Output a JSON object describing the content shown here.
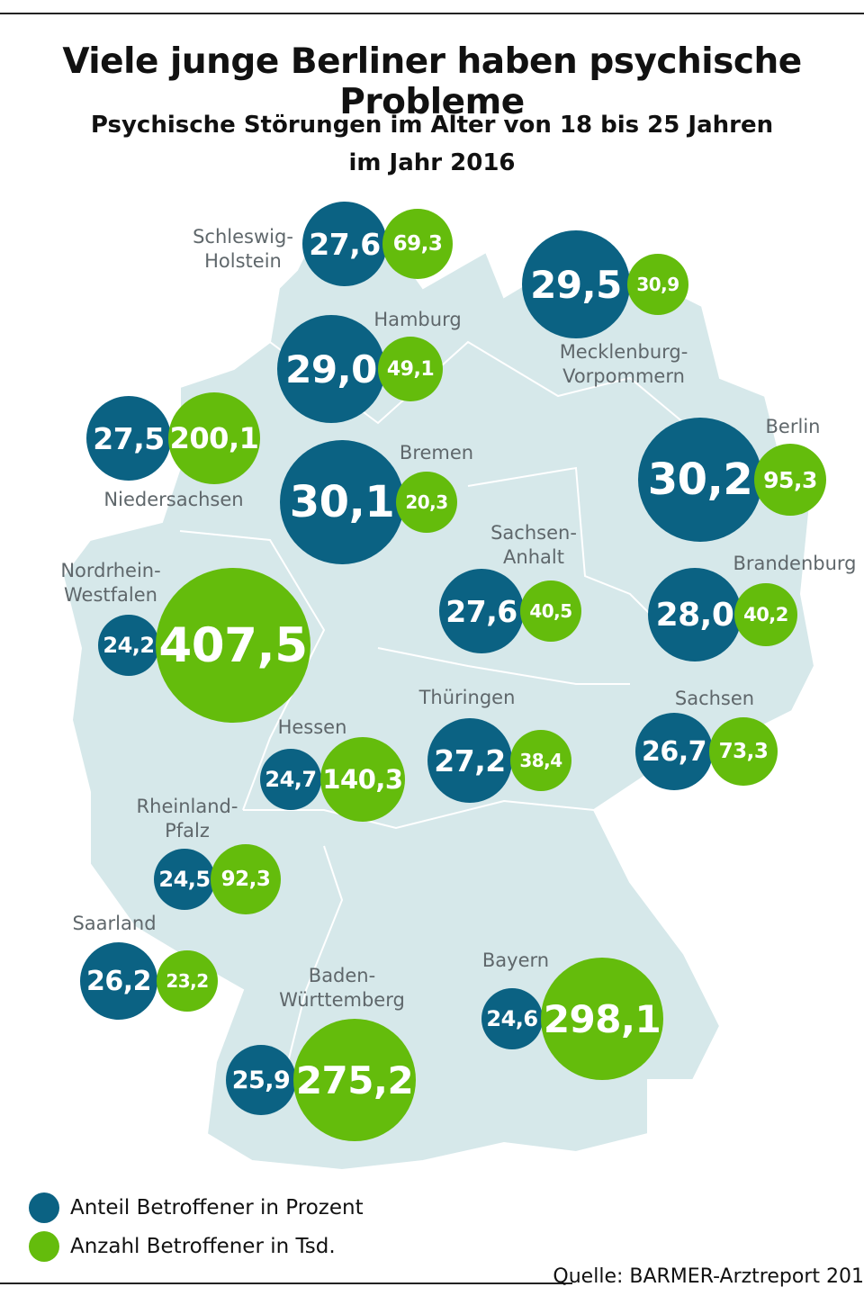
{
  "title": "Viele junge Berliner haben psychische Probleme",
  "subtitle_line1": "Psychische Störungen im Alter von 18 bis 25 Jahren",
  "subtitle_line2": "im Jahr 2016",
  "colors": {
    "anteil": "#0b6283",
    "anzahl": "#64bc0c",
    "map": "#d6e8ea"
  },
  "regions": [
    {
      "label": [
        "Schleswig-",
        "Holstein"
      ],
      "anteil": "27,6",
      "anzahl": "69,3"
    },
    {
      "label": [
        "Mecklenburg-",
        "Vorpommern"
      ],
      "anteil": "29,5",
      "anzahl": "30,9"
    },
    {
      "label": [
        "Hamburg"
      ],
      "anteil": "29,0",
      "anzahl": "49,1"
    },
    {
      "label": [
        "Niedersachsen"
      ],
      "anteil": "27,5",
      "anzahl": "200,1"
    },
    {
      "label": [
        "Bremen"
      ],
      "anteil": "30,1",
      "anzahl": "20,3"
    },
    {
      "label": [
        "Berlin"
      ],
      "anteil": "30,2",
      "anzahl": "95,3"
    },
    {
      "label": [
        "Sachsen-",
        "Anhalt"
      ],
      "anteil": "27,6",
      "anzahl": "40,5"
    },
    {
      "label": [
        "Brandenburg"
      ],
      "anteil": "28,0",
      "anzahl": "40,2"
    },
    {
      "label": [
        "Nordrhein-",
        "Westfalen"
      ],
      "anteil": "24,2",
      "anzahl": "407,5"
    },
    {
      "label": [
        "Thüringen"
      ],
      "anteil": "27,2",
      "anzahl": "38,4"
    },
    {
      "label": [
        "Sachsen"
      ],
      "anteil": "26,7",
      "anzahl": "73,3"
    },
    {
      "label": [
        "Hessen"
      ],
      "anteil": "24,7",
      "anzahl": "140,3"
    },
    {
      "label": [
        "Rheinland-",
        "Pfalz"
      ],
      "anteil": "24,5",
      "anzahl": "92,3"
    },
    {
      "label": [
        "Saarland"
      ],
      "anteil": "26,2",
      "anzahl": "23,2"
    },
    {
      "label": [
        "Bayern"
      ],
      "anteil": "24,6",
      "anzahl": "298,1"
    },
    {
      "label": [
        "Baden-",
        "Württemberg"
      ],
      "anteil": "25,9",
      "anzahl": "275,2"
    }
  ],
  "legend": {
    "anteil": "Anteil Betroffener in Prozent",
    "anzahl": "Anzahl Betroffener in Tsd."
  },
  "source": "Quelle: BARMER-Arztreport 201"
}
